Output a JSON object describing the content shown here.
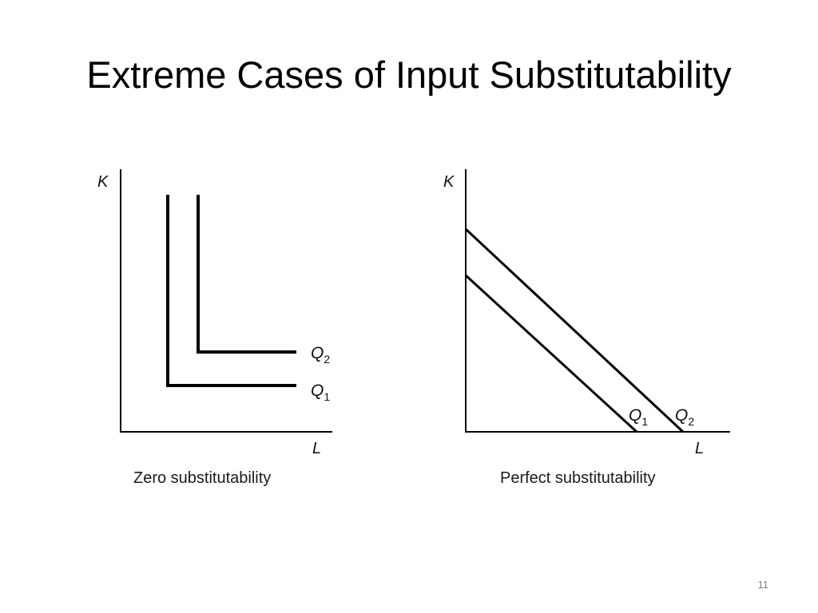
{
  "slide": {
    "title": "Extreme Cases of Input Substitutability",
    "page_number": "11"
  },
  "diagrams": [
    {
      "caption": "Zero substitutability",
      "y_axis_label": "K",
      "x_axis_label": "L",
      "curves": [
        {
          "letter": "Q",
          "subscript": "1"
        },
        {
          "letter": "Q",
          "subscript": "2"
        }
      ]
    },
    {
      "caption": "Perfect substitutability",
      "y_axis_label": "K",
      "x_axis_label": "L",
      "curves": [
        {
          "letter": "Q",
          "subscript": "1"
        },
        {
          "letter": "Q",
          "subscript": "2"
        }
      ]
    }
  ]
}
